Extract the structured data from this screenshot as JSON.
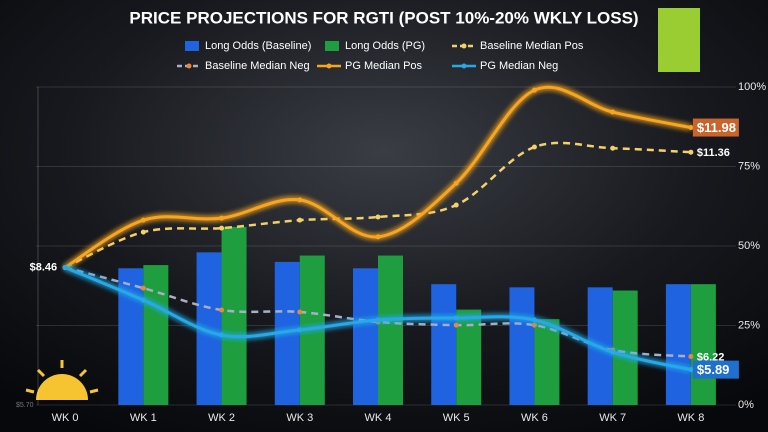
{
  "chart_data": {
    "type": "bar-line",
    "title": "PRICE PROJECTIONS FOR RGTI (POST 10%-20% WKLY LOSS)",
    "categories": [
      "WK 0",
      "WK 1",
      "WK 2",
      "WK 3",
      "WK 4",
      "WK 5",
      "WK 6",
      "WK 7",
      "WK 8"
    ],
    "ylim": [
      5.0,
      13.0
    ],
    "y2lim": [
      0,
      100
    ],
    "y2ticks": [
      {
        "value": 0,
        "label": "0%"
      },
      {
        "value": 25,
        "label": "25%"
      },
      {
        "value": 50,
        "label": "50%"
      },
      {
        "value": 75,
        "label": "75%"
      },
      {
        "value": 100,
        "label": "100%"
      }
    ],
    "grid": true,
    "corner_note": "$5.70",
    "series": [
      {
        "name": "Long Odds (Baseline)",
        "kind": "bar",
        "axis": "y2",
        "color": "#1f63e0",
        "values": [
          null,
          43,
          48,
          45,
          43,
          38,
          37,
          37,
          38
        ]
      },
      {
        "name": "Long Odds (PG)",
        "kind": "bar",
        "axis": "y2",
        "color": "#1e9e3e",
        "values": [
          null,
          44,
          56,
          47,
          47,
          30,
          27,
          36,
          38
        ]
      },
      {
        "name": "Baseline Median Pos",
        "kind": "dashed",
        "color": "#f3d16a",
        "values": [
          8.46,
          9.35,
          9.45,
          9.65,
          9.73,
          10.03,
          11.49,
          11.46,
          11.36
        ],
        "value_labels": [
          null,
          null,
          null,
          null,
          null,
          null,
          null,
          null,
          "$11.36"
        ]
      },
      {
        "name": "Baseline Median Neg",
        "kind": "dashed",
        "color": "#a7b0c6",
        "values": [
          8.46,
          7.94,
          7.39,
          7.34,
          7.09,
          7.01,
          7.01,
          6.38,
          6.22
        ],
        "value_labels": [
          null,
          null,
          null,
          null,
          null,
          null,
          null,
          null,
          "$6.22"
        ]
      },
      {
        "name": "PG Median Pos",
        "kind": "line",
        "color": "#f7a520",
        "values": [
          8.46,
          9.65,
          9.7,
          10.16,
          9.23,
          10.58,
          12.92,
          12.37,
          11.98
        ],
        "value_labels": [
          "$8.46",
          null,
          null,
          null,
          null,
          null,
          null,
          null,
          "$11.98"
        ]
      },
      {
        "name": "PG Median Neg",
        "kind": "line",
        "color": "#27a9e6",
        "values": [
          8.46,
          7.64,
          6.76,
          6.89,
          7.14,
          7.19,
          7.14,
          6.33,
          5.89
        ],
        "value_labels": [
          null,
          null,
          null,
          null,
          null,
          null,
          null,
          null,
          "$5.89"
        ]
      }
    ]
  }
}
